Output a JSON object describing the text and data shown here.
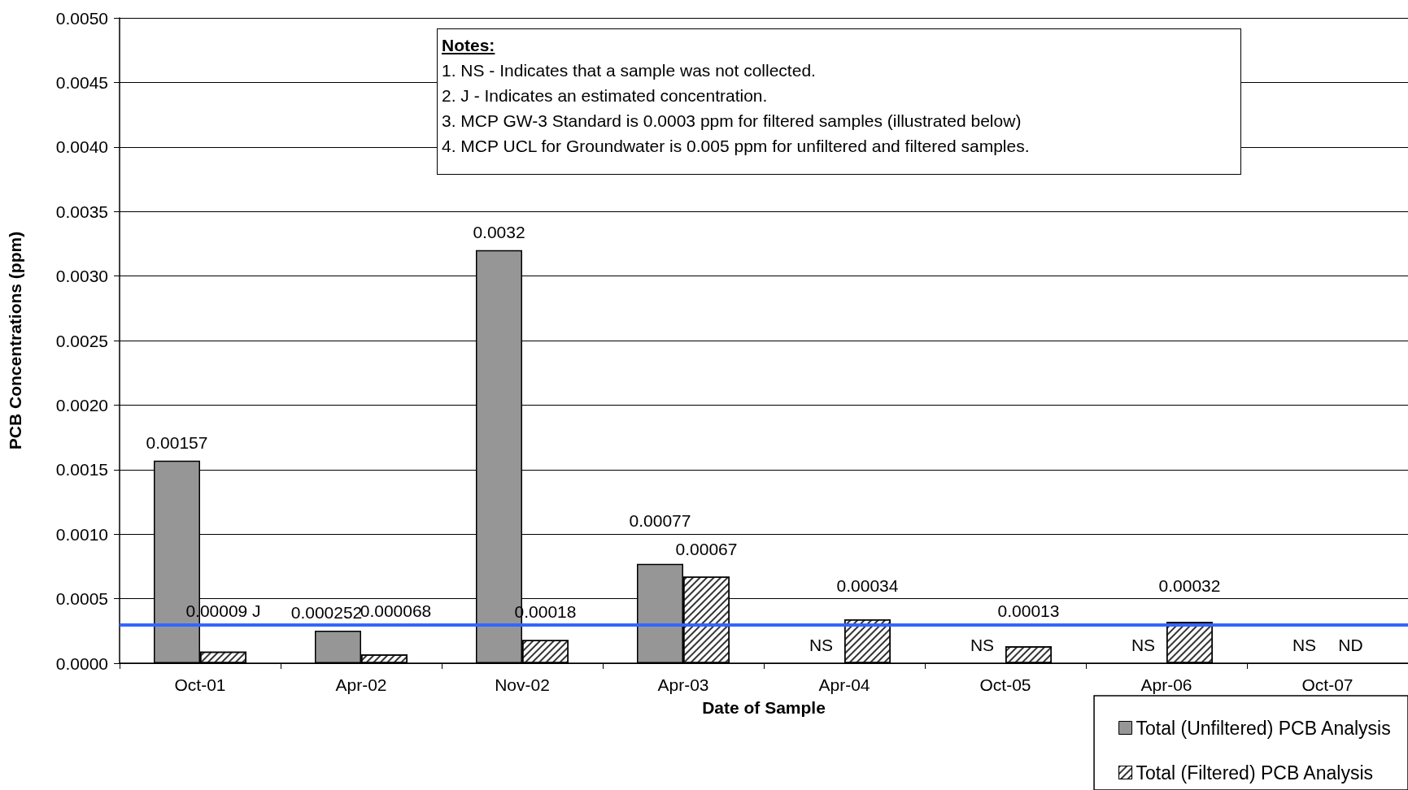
{
  "chart_data": {
    "type": "bar",
    "xlabel": "Date of Sample",
    "ylabel": "PCB Concentrations (ppm)",
    "categories": [
      "Oct-01",
      "Apr-02",
      "Nov-02",
      "Apr-03",
      "Apr-04",
      "Oct-05",
      "Apr-06",
      "Oct-07"
    ],
    "series": [
      {
        "name": "Total (Unfiltered) PCB Analysis",
        "color": "#969696",
        "values": [
          0.00157,
          0.000252,
          0.0032,
          0.00077,
          null,
          null,
          null,
          null
        ],
        "value_labels": [
          "0.00157",
          "0.000252",
          "0.0032",
          "0.00077",
          "NS",
          "NS",
          "NS",
          "NS"
        ]
      },
      {
        "name": "Total (Filtered) PCB Analysis",
        "color": "#ffffff",
        "values": [
          9e-05,
          6.8e-05,
          0.00018,
          0.00067,
          0.00034,
          0.00013,
          0.00032,
          null
        ],
        "value_labels": [
          "0.00009 J",
          "0.000068",
          "0.00018",
          "0.00067",
          "0.00034",
          "0.00013",
          "0.00032",
          "ND"
        ]
      }
    ],
    "ylim": [
      0,
      0.005
    ],
    "yticks": [
      {
        "value": 0,
        "label": "0.0000"
      },
      {
        "value": 0.0005,
        "label": "0.0005"
      },
      {
        "value": 0.001,
        "label": "0.0010"
      },
      {
        "value": 0.0015,
        "label": "0.0015"
      },
      {
        "value": 0.002,
        "label": "0.0020"
      },
      {
        "value": 0.0025,
        "label": "0.0025"
      },
      {
        "value": 0.003,
        "label": "0.0030"
      },
      {
        "value": 0.0035,
        "label": "0.0035"
      },
      {
        "value": 0.004,
        "label": "0.0040"
      },
      {
        "value": 0.0045,
        "label": "0.0045"
      },
      {
        "value": 0.005,
        "label": "0.0050"
      }
    ],
    "ref_lines": [
      {
        "axis": "y",
        "value": 0.0003,
        "label": null,
        "color": "#3366ff"
      }
    ],
    "annotations": [
      "Notes:",
      "1.  NS - Indicates that a sample was not collected.",
      "2.  J - Indicates an estimated concentration.",
      "3.  MCP GW-3 Standard is 0.0003 ppm for filtered samples (illustrated below)",
      "4.  MCP UCL for Groundwater is 0.005 ppm for unfiltered and filtered samples."
    ],
    "grid": "y",
    "legend": "bottom right"
  }
}
